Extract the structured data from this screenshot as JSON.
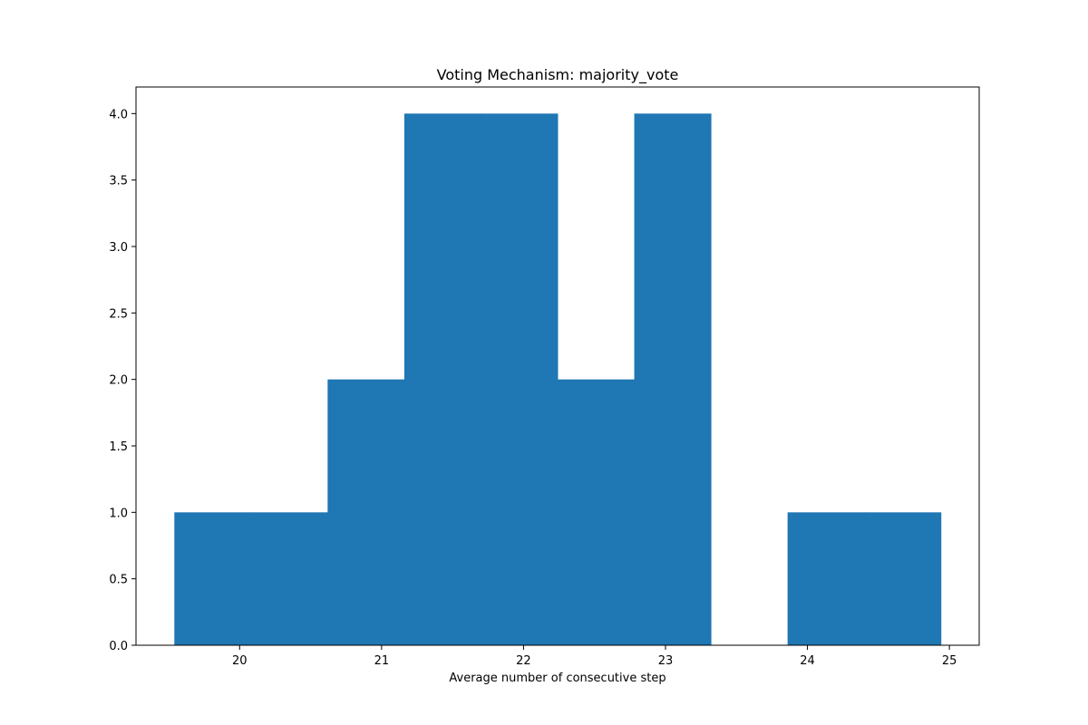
{
  "chart_data": {
    "type": "bar",
    "title": "Voting Mechanism: majority_vote",
    "xlabel": "Average number of consecutive step",
    "ylabel": "",
    "bin_edges": [
      19.54,
      20.08,
      20.62,
      21.16,
      21.7,
      22.24,
      22.78,
      23.32,
      23.86,
      24.4,
      24.94
    ],
    "values": [
      1,
      1,
      2,
      4,
      4,
      2,
      4,
      0,
      1,
      1
    ],
    "xlim": [
      19.27,
      25.21
    ],
    "ylim": [
      0,
      4.2
    ],
    "xticks": [
      20,
      21,
      22,
      23,
      24,
      25
    ],
    "yticks": [
      0.0,
      0.5,
      1.0,
      1.5,
      2.0,
      2.5,
      3.0,
      3.5,
      4.0
    ],
    "bar_color": "#1f77b4",
    "grid": false,
    "legend": "none"
  }
}
